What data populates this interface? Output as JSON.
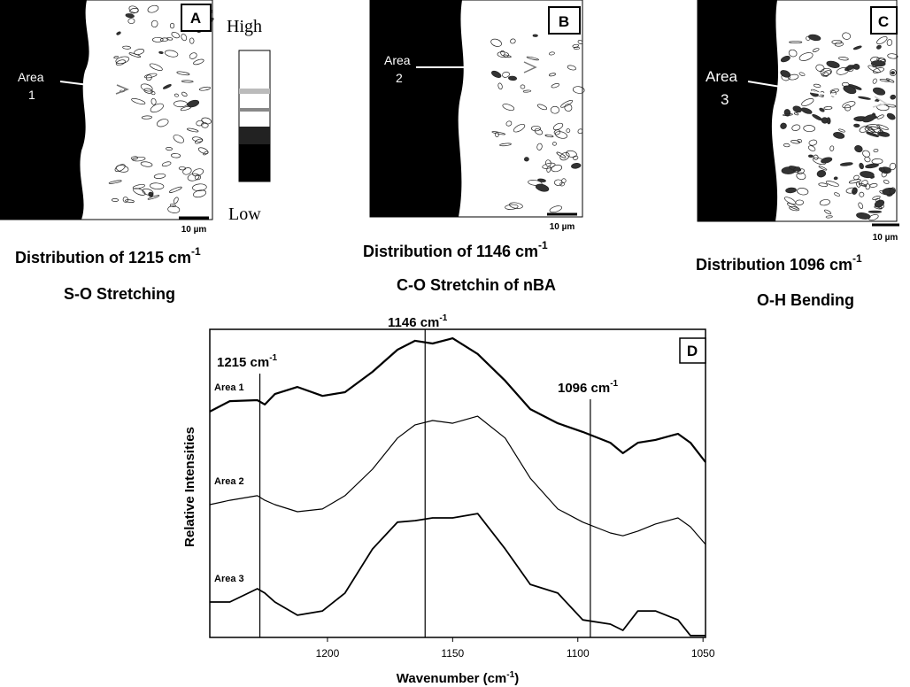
{
  "panels": [
    {
      "letter": "A",
      "area_label": "Area",
      "area_number": "1",
      "scale": "10 µm",
      "caption": "Distribution of 1215 cm",
      "caption_sup": "-1",
      "subcaption": "S-O Stretching"
    },
    {
      "letter": "B",
      "area_label": "Area",
      "area_number": "2",
      "scale": "10 µm",
      "caption": "Distribution of 1146 cm",
      "caption_sup": "-1",
      "subcaption": "C-O Stretchin of nBA"
    },
    {
      "letter": "C",
      "area_label": "Area",
      "area_number": "3",
      "scale": "10 µm",
      "caption": "Distribution 1096 cm",
      "caption_sup": "-1",
      "subcaption": "O-H Bending"
    }
  ],
  "colorbar": {
    "high": "High",
    "low": "Low"
  },
  "chart_data": {
    "type": "line",
    "panel_letter": "D",
    "x_label": "Wavenumber (cm",
    "x_label_sup": "-1",
    "x_label_end": ")",
    "y_label": "Relative Intensities",
    "x": [
      1247,
      1239,
      1228,
      1225,
      1221,
      1212,
      1202,
      1193,
      1182,
      1172,
      1165,
      1158,
      1150,
      1140,
      1129,
      1119,
      1108,
      1098,
      1087,
      1082,
      1076,
      1069,
      1060,
      1055,
      1049
    ],
    "series": [
      {
        "name": "Area 1",
        "color": "#000000",
        "values": [
          73.3,
          76.7,
          77,
          75.6,
          79,
          81.3,
          78.4,
          79.6,
          86.2,
          93.4,
          96.3,
          95.4,
          97.1,
          92,
          83.3,
          74.1,
          69.5,
          66.7,
          63.2,
          59.8,
          63.2,
          64.1,
          66.1,
          63.2,
          56.9
        ]
      },
      {
        "name": "Area 2",
        "color": "#000000",
        "values": [
          43.1,
          44.5,
          46,
          44.5,
          43.1,
          40.8,
          41.7,
          46,
          54.6,
          64.7,
          69,
          70.4,
          69.5,
          71.8,
          64.7,
          51.7,
          41.7,
          37.4,
          33.9,
          33,
          34.5,
          36.8,
          38.8,
          35.9,
          30.2
        ]
      },
      {
        "name": "Area 3",
        "color": "#000000",
        "values": [
          11.5,
          11.5,
          15.8,
          14.4,
          11.5,
          7.2,
          8.6,
          14.4,
          28.7,
          37.4,
          37.9,
          38.8,
          38.8,
          40.2,
          28.7,
          17.2,
          14.4,
          5.7,
          4.3,
          2.3,
          8.6,
          8.6,
          5.7,
          0.6,
          0.6
        ]
      }
    ],
    "annotations": [
      {
        "x": 1227,
        "label": "1215 cm",
        "sup": "-1"
      },
      {
        "x": 1161,
        "label": "1146 cm",
        "sup": "-1"
      },
      {
        "x": 1095,
        "label": "1096 cm",
        "sup": "-1"
      }
    ],
    "xlim": [
      1247,
      1049
    ],
    "ylim": [
      0,
      100
    ],
    "xticks": [
      1200,
      1150,
      1100,
      1050
    ]
  }
}
